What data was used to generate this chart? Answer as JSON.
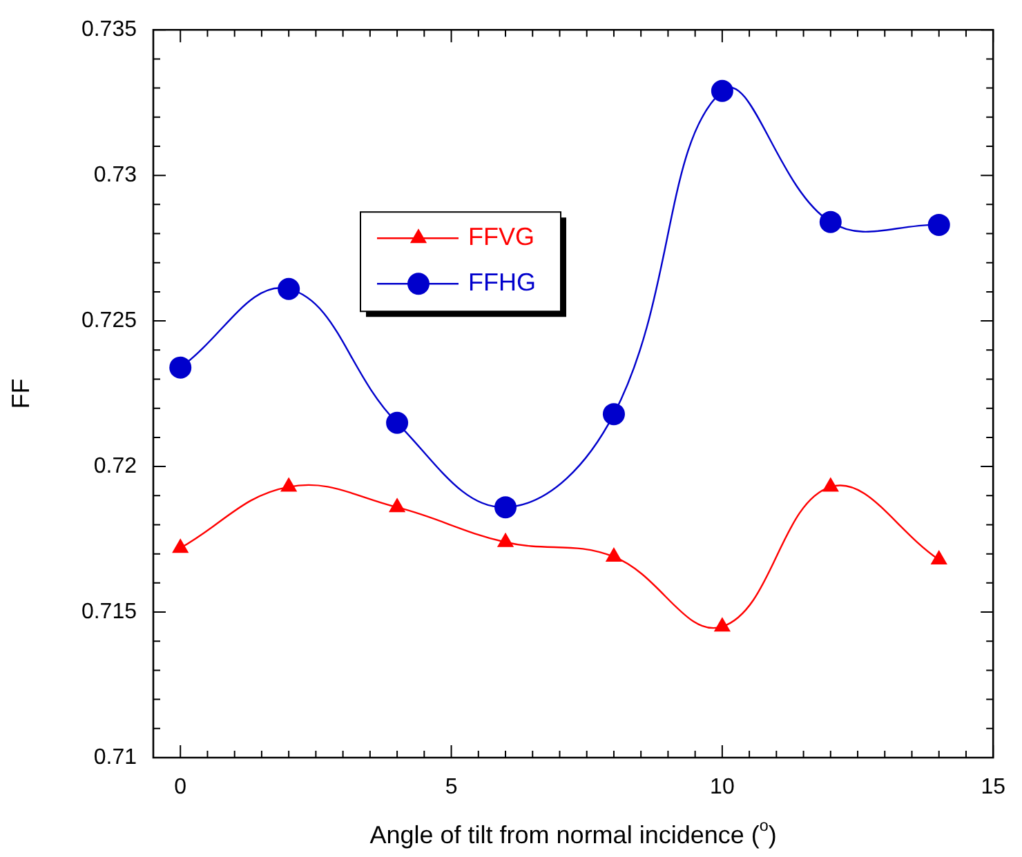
{
  "chart_data": {
    "type": "line",
    "xlabel": "Angle of tilt from normal incidence ($^{o}$)",
    "ylabel": "FF",
    "x": [
      0,
      2,
      4,
      6,
      8,
      10,
      12,
      14
    ],
    "series": [
      {
        "name": "FFVG",
        "color": "#ff0000",
        "marker": "triangle",
        "values": [
          0.7172,
          0.7193,
          0.7186,
          0.7174,
          0.7169,
          0.7145,
          0.7193,
          0.7168
        ]
      },
      {
        "name": "FFHG",
        "color": "#0000cc",
        "marker": "circle",
        "values": [
          0.7234,
          0.7261,
          0.7215,
          0.7186,
          0.7218,
          0.7329,
          0.7284,
          0.7283
        ]
      }
    ],
    "xlim": [
      -0.5,
      15
    ],
    "xticks": [
      0,
      {
        "value": 0.5,
        "label": null
      },
      {
        "value": 1,
        "label": null
      },
      {
        "value": 1.5,
        "label": null
      },
      {
        "value": 2,
        "label": null
      },
      {
        "value": 2.5,
        "label": null
      },
      {
        "value": 3,
        "label": null
      },
      {
        "value": 3.5,
        "label": null
      },
      {
        "value": 4,
        "label": null
      },
      {
        "value": 4.5,
        "label": null
      },
      5,
      {
        "value": 5.5,
        "label": null
      },
      {
        "value": 6,
        "label": null
      },
      {
        "value": 6.5,
        "label": null
      },
      {
        "value": 7,
        "label": null
      },
      {
        "value": 7.5,
        "label": null
      },
      {
        "value": 8,
        "label": null
      },
      {
        "value": 8.5,
        "label": null
      },
      {
        "value": 9,
        "label": null
      },
      {
        "value": 9.5,
        "label": null
      },
      10,
      {
        "value": 10.5,
        "label": null
      },
      {
        "value": 11,
        "label": null
      },
      {
        "value": 11.5,
        "label": null
      },
      {
        "value": 12,
        "label": null
      },
      {
        "value": 12.5,
        "label": null
      },
      {
        "value": 13,
        "label": null
      },
      {
        "value": 13.5,
        "label": null
      },
      {
        "value": 14,
        "label": null
      },
      {
        "value": 14.5,
        "label": null
      },
      15
    ],
    "ylim": [
      0.71,
      0.735
    ],
    "yticks": [
      0.71,
      {
        "value": 0.711,
        "label": null
      },
      {
        "value": 0.712,
        "label": null
      },
      {
        "value": 0.713,
        "label": null
      },
      {
        "value": 0.714,
        "label": null
      },
      0.715,
      {
        "value": 0.716,
        "label": null
      },
      {
        "value": 0.717,
        "label": null
      },
      {
        "value": 0.718,
        "label": null
      },
      {
        "value": 0.719,
        "label": null
      },
      0.72,
      {
        "value": 0.721,
        "label": null
      },
      {
        "value": 0.722,
        "label": null
      },
      {
        "value": 0.723,
        "label": null
      },
      {
        "value": 0.724,
        "label": null
      },
      0.725,
      {
        "value": 0.726,
        "label": null
      },
      {
        "value": 0.727,
        "label": null
      },
      {
        "value": 0.728,
        "label": null
      },
      {
        "value": 0.729,
        "label": null
      },
      0.73,
      {
        "value": 0.731,
        "label": null
      },
      {
        "value": 0.732,
        "label": null
      },
      {
        "value": 0.733,
        "label": null
      },
      {
        "value": 0.734,
        "label": null
      },
      0.735
    ],
    "legend": "top left",
    "grid": false,
    "line_style": "solid"
  }
}
